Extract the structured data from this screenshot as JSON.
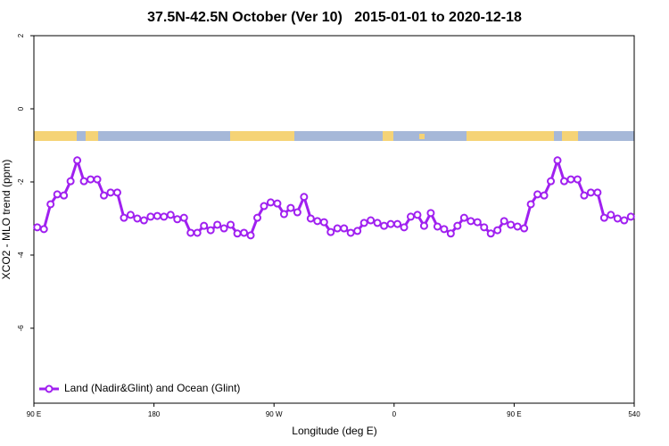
{
  "chart_data": {
    "type": "line",
    "title": "37.5N-42.5N October (Ver 10)   2015-01-01 to 2020-12-18",
    "xlabel": "Longitude (deg E)",
    "ylabel": "XCO2 - MLO trend (ppm)",
    "x": [
      92.5,
      97.5,
      102.5,
      107.5,
      112.5,
      117.5,
      122.5,
      127.5,
      132.5,
      137.5,
      142.5,
      147.5,
      152.5,
      157.5,
      162.5,
      167.5,
      172.5,
      177.5,
      182.5,
      187.5,
      192.5,
      197.5,
      202.5,
      207.5,
      212.5,
      217.5,
      222.5,
      227.5,
      232.5,
      237.5,
      242.5,
      247.5,
      252.5,
      257.5,
      262.5,
      267.5,
      272.5,
      277.5,
      282.5,
      287.5,
      292.5,
      297.5,
      302.5,
      307.5,
      312.5,
      317.5,
      322.5,
      327.5,
      332.5,
      337.5,
      342.5,
      347.5,
      352.5,
      357.5,
      362.5,
      367.5,
      372.5,
      377.5,
      382.5,
      387.5,
      392.5,
      397.5,
      402.5,
      407.5,
      412.5,
      417.5,
      422.5,
      427.5,
      432.5,
      437.5,
      442.5,
      447.5,
      452.5,
      457.5,
      462.5,
      467.5,
      472.5,
      477.5,
      482.5,
      487.5,
      492.5,
      497.5,
      502.5,
      507.5,
      512.5,
      517.5,
      522.5,
      527.5,
      532.5,
      537.5
    ],
    "series": [
      {
        "name": "Land (Nadir&Glint) and Ocean (Glint)",
        "color": "#a020f0",
        "values": [
          -3.24,
          -3.29,
          -2.61,
          -2.34,
          -2.37,
          -1.98,
          -1.41,
          -1.98,
          -1.93,
          -1.93,
          -2.37,
          -2.29,
          -2.29,
          -2.98,
          -2.9,
          -3.0,
          -3.05,
          -2.95,
          -2.93,
          -2.95,
          -2.9,
          -3.02,
          -2.98,
          -3.39,
          -3.39,
          -3.2,
          -3.32,
          -3.17,
          -3.27,
          -3.17,
          -3.41,
          -3.39,
          -3.46,
          -2.98,
          -2.66,
          -2.56,
          -2.59,
          -2.88,
          -2.71,
          -2.83,
          -2.41,
          -3.0,
          -3.07,
          -3.1,
          -3.37,
          -3.27,
          -3.27,
          -3.39,
          -3.34,
          -3.12,
          -3.05,
          -3.12,
          -3.2,
          -3.15,
          -3.15,
          -3.24,
          -2.95,
          -2.9,
          -3.2,
          -2.85,
          -3.22,
          -3.29,
          -3.41,
          -3.2,
          -2.98,
          -3.07,
          -3.1,
          -3.24,
          -3.41,
          -3.32,
          -3.07,
          -3.17,
          -3.22,
          -3.27,
          -2.61,
          -2.34,
          -2.37,
          -1.98,
          -1.41,
          -1.98,
          -1.93,
          -1.93,
          -2.37,
          -2.29,
          -2.29,
          -2.98,
          -2.9,
          -3.0,
          -3.05,
          -2.95
        ]
      }
    ],
    "xlim": [
      90,
      540
    ],
    "xticks": [
      {
        "value": 90,
        "label": "90 E"
      },
      180,
      {
        "value": 270,
        "label": "90 W"
      },
      {
        "value": 360,
        "label": "0"
      },
      {
        "value": 450,
        "label": "90 E"
      },
      540
    ],
    "ylim": [
      -8.05,
      2
    ],
    "yticks": [
      2,
      0,
      -2,
      -4,
      -6
    ],
    "grid": false,
    "legend": "bottom-left"
  }
}
